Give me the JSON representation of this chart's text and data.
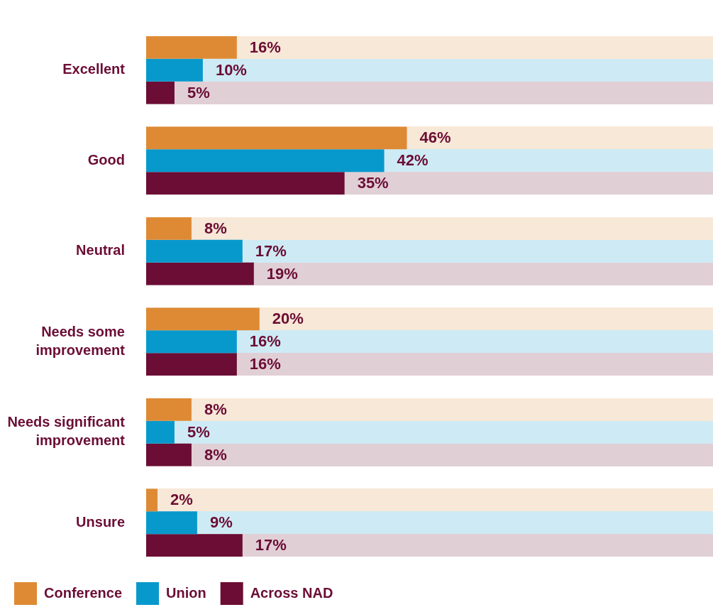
{
  "chart_data": {
    "type": "bar",
    "orientation": "horizontal",
    "categories": [
      "Excellent",
      "Good",
      "Neutral",
      "Needs some improvement",
      "Needs significant improvement",
      "Unsure"
    ],
    "series": [
      {
        "name": "Conference",
        "color": "#de8a35",
        "values": [
          16,
          46,
          8,
          20,
          8,
          2
        ],
        "value_labels": [
          "16%",
          "46%",
          "8%",
          "20%",
          "8%",
          "2%"
        ]
      },
      {
        "name": "Union",
        "color": "#0899cc",
        "values": [
          10,
          42,
          17,
          16,
          5,
          9
        ],
        "value_labels": [
          "10%",
          "42%",
          "17%",
          "16%",
          "5%",
          "9%"
        ]
      },
      {
        "name": "Across NAD",
        "color": "#6b0d34",
        "values": [
          5,
          35,
          19,
          16,
          8,
          17
        ],
        "value_labels": [
          "5%",
          "35%",
          "19%",
          "16%",
          "8%",
          "17%"
        ]
      }
    ],
    "xlim": [
      0,
      100
    ],
    "tick_labels": "y",
    "legend": "bottom left"
  }
}
